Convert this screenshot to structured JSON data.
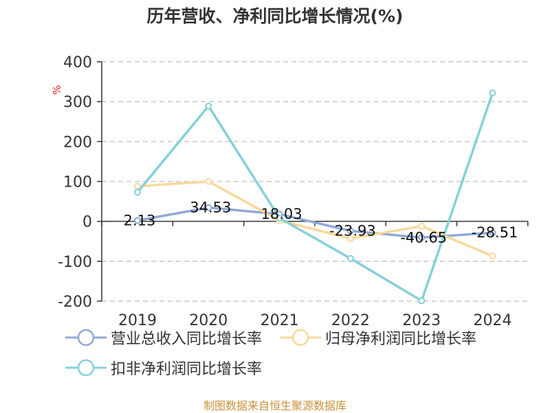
{
  "title": "历年营收、净利同比增长情况(%)",
  "footer": "制图数据来自恒生聚源数据库",
  "chart_data": {
    "type": "line",
    "categories": [
      "2019",
      "2020",
      "2021",
      "2022",
      "2023",
      "2024"
    ],
    "ylabel": "%",
    "ylim": [
      -200,
      400
    ],
    "yticks": [
      400,
      300,
      200,
      100,
      0,
      -100,
      -200
    ],
    "grid": true,
    "legend_position": "bottom",
    "series": [
      {
        "name": "营业总收入同比增长率",
        "color": "#8fa9d6",
        "values": [
          2.13,
          34.53,
          18.03,
          -23.93,
          -40.65,
          -28.51
        ],
        "labels": [
          "2.13",
          "34.53",
          "18.03",
          "-23.93",
          "-40.65",
          "-28.51"
        ]
      },
      {
        "name": "归母净利润同比增长率",
        "color": "#f9d89a",
        "values": [
          88,
          100,
          2,
          -43,
          -12,
          -87
        ]
      },
      {
        "name": "扣非净利润同比增长率",
        "color": "#85d0d9",
        "values": [
          73,
          289,
          8,
          -93,
          -199,
          322
        ]
      }
    ]
  }
}
